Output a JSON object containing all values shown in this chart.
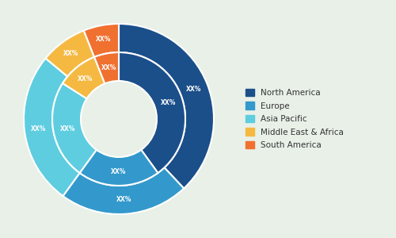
{
  "categories": [
    "North America",
    "Europe",
    "Asia Pacific",
    "Middle East & Africa",
    "South America"
  ],
  "colors": [
    "#1b4f8a",
    "#3399cc",
    "#5ecde0",
    "#f5b942",
    "#f07030"
  ],
  "outer_values": [
    38,
    22,
    26,
    8,
    6
  ],
  "inner_values": [
    40,
    20,
    24,
    10,
    6
  ],
  "label_text": "XX%",
  "background_color": "#e8f0e8",
  "legend_fontsize": 7.5,
  "text_color": "#ffffff"
}
